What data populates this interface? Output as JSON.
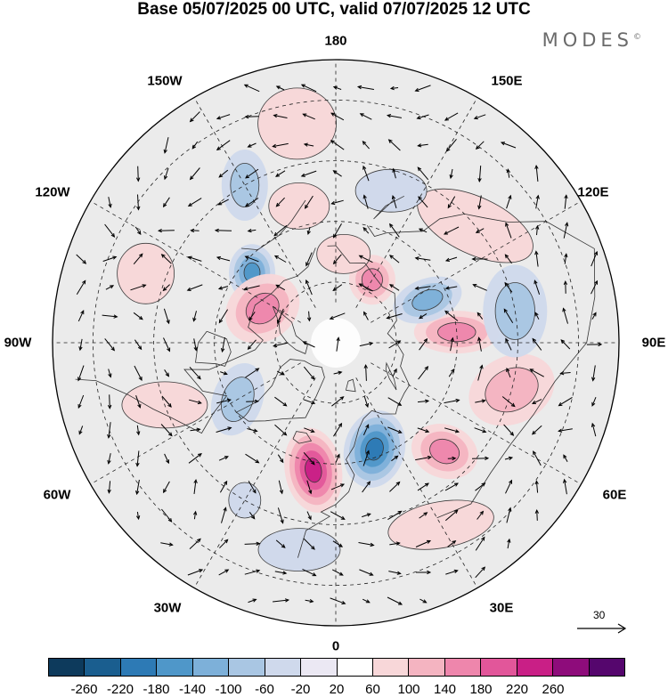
{
  "title": "Base 05/07/2025 00 UTC, valid 07/07/2025 12 UTC",
  "brand": "MODES",
  "brand_mark": "©",
  "longitude_labels": [
    "180",
    "150E",
    "120E",
    "90E",
    "60E",
    "30E",
    "0",
    "30W",
    "60W",
    "90W",
    "120W",
    "150W"
  ],
  "vector_scale": {
    "label": "30",
    "icon": "arrow-right-icon"
  },
  "colorbar": {
    "colors": [
      "#0d3a5c",
      "#1a5e8f",
      "#2d7ab5",
      "#4f97c9",
      "#7db0d9",
      "#a9c6e3",
      "#cfd9ec",
      "#ebe8f3",
      "#ffffff",
      "#f8d7d9",
      "#f4b4c1",
      "#ee86ac",
      "#e2569a",
      "#c91f86",
      "#8e0c7b",
      "#55066d"
    ],
    "ticks": [
      "-260",
      "-220",
      "-180",
      "-140",
      "-100",
      "-60",
      "-20",
      "20",
      "60",
      "100",
      "140",
      "180",
      "220",
      "260"
    ]
  },
  "map": {
    "projection": "north-polar-stereographic",
    "field": "geopotential height anomaly",
    "units_hint": "shaded anomalies with wind vectors",
    "anomalies": [
      {
        "lon": -10,
        "lat": 58,
        "value": 220,
        "rx": 32,
        "ry": 48,
        "rot": -10
      },
      {
        "lon": 20,
        "lat": 62,
        "value": -240,
        "rx": 34,
        "ry": 44,
        "rot": 15
      },
      {
        "lon": 45,
        "lat": 52,
        "value": 140,
        "rx": 38,
        "ry": 30,
        "rot": 20
      },
      {
        "lon": 75,
        "lat": 45,
        "value": 100,
        "rx": 50,
        "ry": 38,
        "rot": -25
      },
      {
        "lon": 95,
        "lat": 60,
        "value": 160,
        "rx": 48,
        "ry": 24,
        "rot": 0
      },
      {
        "lon": 115,
        "lat": 65,
        "value": -160,
        "rx": 40,
        "ry": 24,
        "rot": -20
      },
      {
        "lon": 100,
        "lat": 45,
        "value": -120,
        "rx": 36,
        "ry": 52,
        "rot": 0
      },
      {
        "lon": 150,
        "lat": 72,
        "value": 140,
        "rx": 26,
        "ry": 28,
        "rot": 0
      },
      {
        "lon": 175,
        "lat": 68,
        "value": 80,
        "rx": 30,
        "ry": 22,
        "rot": 0
      },
      {
        "lon": 130,
        "lat": 45,
        "value": 80,
        "rx": 70,
        "ry": 32,
        "rot": 25
      },
      {
        "lon": -130,
        "lat": 63,
        "value": -200,
        "rx": 26,
        "ry": 32,
        "rot": 0
      },
      {
        "lon": -115,
        "lat": 70,
        "value": 160,
        "rx": 44,
        "ry": 36,
        "rot": -35
      },
      {
        "lon": -150,
        "lat": 45,
        "value": -100,
        "rx": 26,
        "ry": 40,
        "rot": 0
      },
      {
        "lon": -110,
        "lat": 40,
        "value": 80,
        "rx": 32,
        "ry": 34,
        "rot": 0
      },
      {
        "lon": -60,
        "lat": 62,
        "value": -120,
        "rx": 28,
        "ry": 42,
        "rot": 20
      },
      {
        "lon": -70,
        "lat": 45,
        "value": 60,
        "rx": 48,
        "ry": 26,
        "rot": 0
      },
      {
        "lon": 30,
        "lat": 38,
        "value": 60,
        "rx": 60,
        "ry": 26,
        "rot": -10
      },
      {
        "lon": -10,
        "lat": 38,
        "value": -60,
        "rx": 46,
        "ry": 24,
        "rot": 0
      },
      {
        "lon": -30,
        "lat": 45,
        "value": -80,
        "rx": 18,
        "ry": 20,
        "rot": 0
      },
      {
        "lon": -170,
        "lat": 35,
        "value": 80,
        "rx": 44,
        "ry": 40,
        "rot": 0
      },
      {
        "lon": -165,
        "lat": 55,
        "value": 60,
        "rx": 34,
        "ry": 26,
        "rot": 0
      },
      {
        "lon": 160,
        "lat": 50,
        "value": -60,
        "rx": 40,
        "ry": 24,
        "rot": 0
      }
    ]
  }
}
